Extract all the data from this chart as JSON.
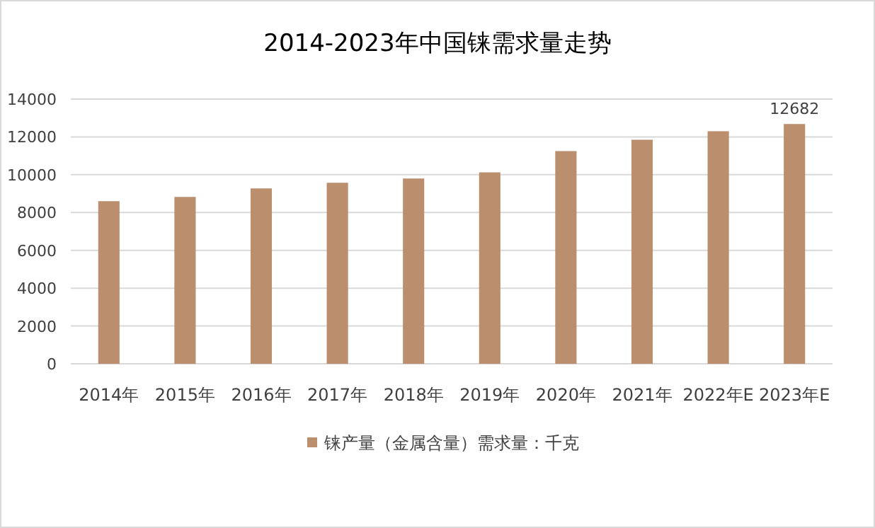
{
  "chart_data": {
    "type": "bar",
    "title": "2014-2023年中国铼需求量走势",
    "categories": [
      "2014年",
      "2015年",
      "2016年",
      "2017年",
      "2018年",
      "2019年",
      "2020年",
      "2021年",
      "2022年E",
      "2023年E"
    ],
    "series": [
      {
        "name": "铼产量（金属含量）需求量：千克",
        "color": "#bb8e6d",
        "values": [
          8600,
          8825,
          9275,
          9575,
          9800,
          10125,
          11250,
          11850,
          12300,
          12682
        ],
        "value_labels": [
          null,
          null,
          null,
          null,
          null,
          null,
          null,
          null,
          null,
          "12682"
        ]
      }
    ],
    "ylim": [
      0,
      14000
    ],
    "yticks": [
      0,
      2000,
      4000,
      6000,
      8000,
      10000,
      12000,
      14000
    ],
    "grid": "y",
    "legend": "bottom"
  }
}
